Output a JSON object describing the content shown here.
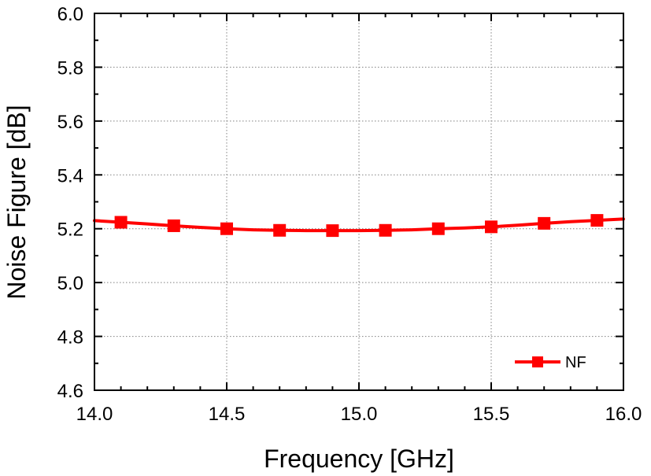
{
  "chart_data": {
    "type": "line",
    "title": "",
    "xlabel": "Frequency [GHz]",
    "ylabel": "Noise Figure [dB]",
    "xlim": [
      14.0,
      16.0
    ],
    "ylim": [
      4.6,
      6.0
    ],
    "x_ticks": [
      "14.0",
      "14.5",
      "15.0",
      "15.5",
      "16.0"
    ],
    "y_ticks": [
      "4.6",
      "4.8",
      "5.0",
      "5.2",
      "5.4",
      "5.6",
      "5.8",
      "6.0"
    ],
    "x_minor_step": 0.1,
    "y_minor_step": 0.1,
    "grid": true,
    "legend_position": "bottom-right",
    "series": [
      {
        "name": "NF",
        "color": "#ff0000",
        "marker": "square",
        "curve_x": [
          14.0,
          14.1,
          14.2,
          14.3,
          14.4,
          14.5,
          14.6,
          14.7,
          14.8,
          14.9,
          15.0,
          15.1,
          15.2,
          15.3,
          15.4,
          15.5,
          15.6,
          15.7,
          15.8,
          15.9,
          16.0
        ],
        "curve_y": [
          5.23,
          5.224,
          5.218,
          5.211,
          5.205,
          5.2,
          5.196,
          5.194,
          5.193,
          5.193,
          5.193,
          5.194,
          5.196,
          5.2,
          5.203,
          5.207,
          5.213,
          5.22,
          5.226,
          5.231,
          5.236
        ],
        "marker_x": [
          14.1,
          14.3,
          14.5,
          14.7,
          14.9,
          15.1,
          15.3,
          15.5,
          15.7,
          15.9
        ],
        "marker_y": [
          5.224,
          5.211,
          5.2,
          5.194,
          5.193,
          5.194,
          5.2,
          5.207,
          5.22,
          5.231
        ]
      }
    ]
  }
}
